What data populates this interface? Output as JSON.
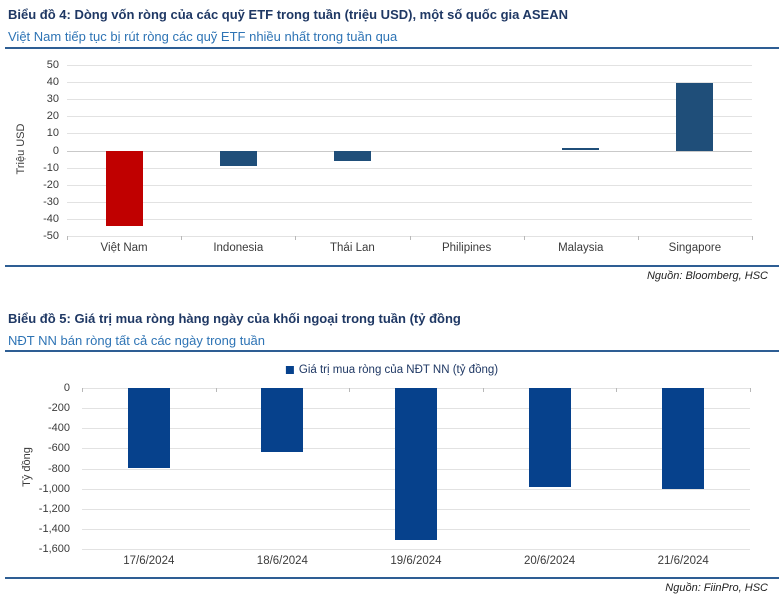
{
  "colors": {
    "heading": "#1f3864",
    "subtitle": "#2e74b5",
    "divider": "#2e5e94",
    "bar_red": "#c00000",
    "bar_blue_chart4": "#1f4e79",
    "bar_blue_chart5": "#06418c",
    "gridline": "#e2e2e2"
  },
  "chart_data": [
    {
      "name": "etf-weekly-net-flows-asean",
      "type": "bar",
      "title": "Biểu đồ 4: Dòng vốn ròng của các quỹ ETF trong tuần (triệu USD), một số quốc gia ASEAN",
      "subtitle": "Việt Nam tiếp tục bị rút ròng các quỹ ETF nhiều nhất trong tuần qua",
      "source": "Nguồn: Bloomberg, HSC",
      "ylabel": "Triệu USD",
      "xlabel": "",
      "categories": [
        "Việt Nam",
        "Indonesia",
        "Thái Lan",
        "Philipines",
        "Malaysia",
        "Singapore"
      ],
      "values": [
        -44,
        -9,
        -6,
        0,
        1.5,
        39.5
      ],
      "bar_colors": [
        "#c00000",
        "#1f4e79",
        "#1f4e79",
        "#1f4e79",
        "#1f4e79",
        "#1f4e79"
      ],
      "ylim": [
        -50,
        50
      ],
      "ytick_values": [
        50,
        40,
        30,
        20,
        10,
        0,
        -10,
        -20,
        -30,
        -40,
        -50
      ],
      "ytick_labels": [
        "50",
        "40",
        "30",
        "20",
        "10",
        "0",
        "-10",
        "-20",
        "-30",
        "-40",
        "-50"
      ],
      "grid": true,
      "legend": null
    },
    {
      "name": "foreign-investor-daily-net-buying",
      "type": "bar",
      "title": "Biểu đồ 5: Giá trị mua ròng hàng ngày của khối ngoại trong tuần (tỷ đồng",
      "subtitle": "NĐT NN bán ròng tất cả các ngày trong tuần",
      "source": "Nguồn: FiinPro, HSC",
      "ylabel": "Tỷ đồng",
      "xlabel": "",
      "legend": "Giá trị mua ròng của NĐT NN (tỷ đồng)",
      "legend_position": "top-center",
      "categories": [
        "17/6/2024",
        "18/6/2024",
        "19/6/2024",
        "20/6/2024",
        "21/6/2024"
      ],
      "values": [
        -790,
        -640,
        -1510,
        -980,
        -1000
      ],
      "bar_colors": [
        "#06418c",
        "#06418c",
        "#06418c",
        "#06418c",
        "#06418c"
      ],
      "ylim": [
        -1600,
        0
      ],
      "ytick_values": [
        0,
        -200,
        -400,
        -600,
        -800,
        -1000,
        -1200,
        -1400,
        -1600
      ],
      "ytick_labels": [
        "0",
        "-200",
        "-400",
        "-600",
        "-800",
        "-1,000",
        "-1,200",
        "-1,400",
        "-1,600"
      ],
      "grid": true
    }
  ]
}
